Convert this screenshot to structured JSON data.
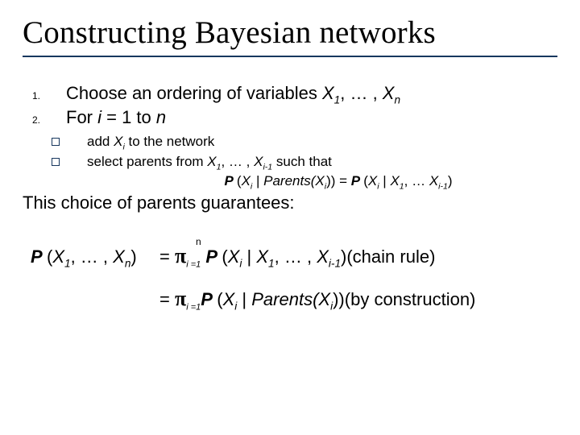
{
  "title": "Constructing Bayesian networks",
  "list": {
    "item1_num": "1.",
    "item1_text_a": "Choose an ordering of variables ",
    "item1_text_b": "X",
    "item1_text_c": "1",
    "item1_text_d": ", … , ",
    "item1_text_e": "X",
    "item1_text_f": "n",
    "item2_num": "2.",
    "item2_text_a": "For ",
    "item2_text_b": "i ",
    "item2_text_c": "= 1 to ",
    "item2_text_d": "n"
  },
  "sublist": {
    "a_text_1": "add ",
    "a_text_2": "X",
    "a_text_3": "i",
    "a_text_4": " to the network",
    "b_text_1": "select parents from ",
    "b_text_2": "X",
    "b_text_3": "1",
    "b_text_4": ", … , ",
    "b_text_5": "X",
    "b_text_6": "i-1",
    "b_text_7": " such that"
  },
  "eq1": {
    "a": "P ",
    "b": "(",
    "c": "X",
    "d": "i",
    "e": " | ",
    "f": "Parents(X",
    "g": "i",
    "h": ")) = ",
    "i": "P ",
    "j": "(",
    "k": "X",
    "l": "i",
    "m": " | ",
    "n": "X",
    "o": "1",
    "p": ", … ",
    "q": "X",
    "r": "i-1",
    "s": ")"
  },
  "guarantee": "This choice of parents guarantees:",
  "chain": {
    "n": "n",
    "lhs_a": "P ",
    "lhs_b": "(",
    "lhs_c": "X",
    "lhs_d": "1",
    "lhs_e": ", … , ",
    "lhs_f": "X",
    "lhs_g": "n",
    "lhs_h": ")",
    "pi": "π",
    "pi_sub1": "i =1",
    "eq": "= ",
    "r1_a": " P ",
    "r1_b": "(",
    "r1_c": "X",
    "r1_d": "i",
    "r1_e": " | ",
    "r1_f": "X",
    "r1_g": "1",
    "r1_h": ", … , ",
    "r1_i": "X",
    "r1_j": "i-1",
    "r1_k": ")",
    "r1_tag": "(chain rule)",
    "r2_a": "P ",
    "r2_b": "(",
    "r2_c": "X",
    "r2_d": "i",
    "r2_e": " | ",
    "r2_f": "Parents(X",
    "r2_g": "i",
    "r2_h": "))",
    "r2_tag": "(by construction)"
  },
  "colors": {
    "rule": "#17375e",
    "text": "#000000",
    "bg": "#ffffff"
  }
}
